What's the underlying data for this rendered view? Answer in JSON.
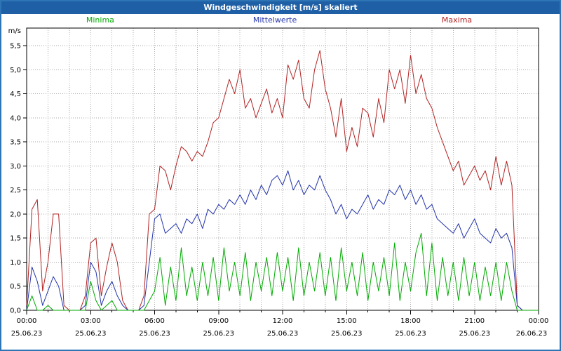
{
  "window": {
    "title": "Windgeschwindigkeit [m/s] skaliert"
  },
  "colors": {
    "titlebar_bg": "#1f5fa5",
    "frame": "#2e75b6",
    "grid": "#aaaaaa",
    "axis": "#000000",
    "minima": "#00aa00",
    "mittelwerte": "#2233aa",
    "maxima": "#b22222"
  },
  "chart_data": {
    "type": "line",
    "title": "Windgeschwindigkeit [m/s] skaliert",
    "xlabel": "",
    "ylabel": "m/s",
    "ylim": [
      0,
      5.5
    ],
    "ytick_step": 0.5,
    "y_tick_labels": [
      "0,0",
      "0,5",
      "1,0",
      "1,5",
      "2,0",
      "2,5",
      "3,0",
      "3,5",
      "4,0",
      "4,5",
      "5,0",
      "5,5"
    ],
    "x_hours_range": [
      0,
      24
    ],
    "x_tick_hours": [
      0,
      3,
      6,
      9,
      12,
      15,
      18,
      21,
      24
    ],
    "x_tick_labels": [
      "00:00",
      "03:00",
      "06:00",
      "09:00",
      "12:00",
      "15:00",
      "18:00",
      "21:00",
      "00:00"
    ],
    "x_date_labels": [
      "25.06.23",
      "25.06.23",
      "25.06.23",
      "25.06.23",
      "25.06.23",
      "25.06.23",
      "25.06.23",
      "25.06.23",
      "26.06.23"
    ],
    "sample_interval_hours": 0.25,
    "grid": true,
    "legend_position": "top",
    "series": [
      {
        "name": "Minima",
        "color": "#00aa00",
        "values": [
          0.0,
          0.3,
          0.0,
          0.0,
          0.1,
          0.0,
          0.0,
          0.0,
          0.0,
          0.0,
          0.0,
          0.0,
          0.6,
          0.2,
          0.0,
          0.1,
          0.2,
          0.0,
          0.0,
          0.0,
          0.0,
          0.0,
          0.0,
          0.2,
          0.4,
          1.1,
          0.1,
          0.9,
          0.2,
          1.3,
          0.3,
          0.9,
          0.2,
          1.0,
          0.3,
          1.1,
          0.2,
          1.3,
          0.4,
          1.0,
          0.3,
          1.2,
          0.2,
          1.0,
          0.4,
          1.1,
          0.3,
          1.2,
          0.4,
          1.1,
          0.2,
          1.3,
          0.3,
          1.0,
          0.4,
          1.2,
          0.3,
          1.1,
          0.2,
          1.3,
          0.4,
          1.0,
          0.3,
          1.2,
          0.2,
          1.0,
          0.4,
          1.1,
          0.3,
          1.4,
          0.2,
          1.0,
          0.4,
          1.2,
          1.6,
          0.3,
          1.4,
          0.2,
          1.1,
          0.3,
          1.0,
          0.2,
          1.1,
          0.3,
          1.0,
          0.2,
          0.9,
          0.3,
          1.0,
          0.2,
          1.0,
          0.4,
          0.0,
          0.0,
          0.0,
          0.0,
          0.0
        ]
      },
      {
        "name": "Mittelwerte",
        "color": "#2233aa",
        "values": [
          0.0,
          0.9,
          0.6,
          0.1,
          0.4,
          0.7,
          0.5,
          0.0,
          0.0,
          0.0,
          0.0,
          0.1,
          1.0,
          0.8,
          0.1,
          0.4,
          0.6,
          0.3,
          0.1,
          0.0,
          0.0,
          0.0,
          0.1,
          1.0,
          1.9,
          2.0,
          1.6,
          1.7,
          1.8,
          1.6,
          1.9,
          1.8,
          2.0,
          1.7,
          2.1,
          2.0,
          2.2,
          2.1,
          2.3,
          2.2,
          2.4,
          2.2,
          2.5,
          2.3,
          2.6,
          2.4,
          2.7,
          2.8,
          2.6,
          2.9,
          2.5,
          2.7,
          2.4,
          2.6,
          2.5,
          2.8,
          2.5,
          2.3,
          2.0,
          2.2,
          1.9,
          2.1,
          2.0,
          2.2,
          2.4,
          2.1,
          2.3,
          2.2,
          2.5,
          2.4,
          2.6,
          2.3,
          2.5,
          2.2,
          2.4,
          2.1,
          2.2,
          1.9,
          1.8,
          1.7,
          1.6,
          1.8,
          1.5,
          1.7,
          1.9,
          1.6,
          1.5,
          1.4,
          1.7,
          1.5,
          1.6,
          1.3,
          0.1,
          0.0,
          0.0,
          0.0,
          0.0
        ]
      },
      {
        "name": "Maxima",
        "color": "#b22222",
        "values": [
          0.1,
          2.1,
          2.3,
          0.4,
          1.0,
          2.0,
          2.0,
          0.1,
          0.0,
          0.0,
          0.0,
          0.3,
          1.4,
          1.5,
          0.3,
          0.9,
          1.4,
          1.0,
          0.2,
          0.0,
          0.0,
          0.0,
          0.3,
          2.0,
          2.1,
          3.0,
          2.9,
          2.5,
          3.0,
          3.4,
          3.3,
          3.1,
          3.3,
          3.2,
          3.5,
          3.9,
          4.0,
          4.4,
          4.8,
          4.5,
          5.0,
          4.2,
          4.4,
          4.0,
          4.3,
          4.6,
          4.1,
          4.4,
          4.0,
          5.1,
          4.8,
          5.2,
          4.4,
          4.2,
          5.0,
          5.4,
          4.6,
          4.2,
          3.6,
          4.4,
          3.3,
          3.8,
          3.4,
          4.2,
          4.1,
          3.6,
          4.4,
          3.9,
          5.0,
          4.6,
          5.0,
          4.3,
          5.3,
          4.5,
          4.9,
          4.4,
          4.2,
          3.8,
          3.5,
          3.2,
          2.9,
          3.1,
          2.6,
          2.8,
          3.0,
          2.7,
          2.9,
          2.5,
          3.2,
          2.6,
          3.1,
          2.6,
          0.1,
          0.0,
          0.0,
          0.0,
          0.0
        ]
      }
    ]
  }
}
